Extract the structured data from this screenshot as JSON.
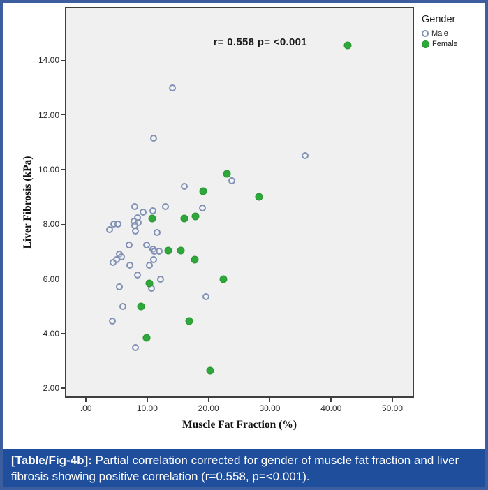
{
  "figure": {
    "legend": {
      "title": "Gender",
      "items": [
        {
          "label": "Male",
          "marker": "open-circle"
        },
        {
          "label": "Female",
          "marker": "filled-circle"
        }
      ]
    },
    "caption": {
      "label": "[Table/Fig-4b]:",
      "text": " Partial correlation corrected for gender of muscle fat fraction and liver fibrosis showing positive correlation (r=0.558, p=<0.001)."
    }
  },
  "colors": {
    "border_blue": "#3d5e9e",
    "caption_bg": "#1e4e9c",
    "plot_bg": "#f1f0f1",
    "frame": "#3f3f3f",
    "male_stroke": "#8091b4",
    "female_fill": "#2ea83b"
  },
  "chart_data": {
    "type": "scatter",
    "title": "",
    "xlabel": "Muscle Fat Fraction (%)",
    "ylabel": "Liver Fibrosis (kPa)",
    "annotation": "r= 0.558  p= <0.001",
    "xlim": [
      -3.2,
      53.3
    ],
    "ylim": [
      1.7,
      15.9
    ],
    "grid": false,
    "legend_position": "top-right-outside",
    "xticks": {
      "values": [
        0,
        10,
        20,
        30,
        40,
        50
      ],
      "labels": [
        ".00",
        "10.00",
        "20.00",
        "30.00",
        "40.00",
        "50.00"
      ]
    },
    "yticks": {
      "values": [
        2,
        4,
        6,
        8,
        10,
        12,
        14
      ],
      "labels": [
        "2.00",
        "4.00",
        "6.00",
        "8.00",
        "10.00",
        "12.00",
        "14.00"
      ]
    },
    "series": [
      {
        "name": "Male",
        "marker": "open-circle",
        "color": "#8091b4",
        "points": [
          [
            8.0,
            8.65
          ],
          [
            9.3,
            8.45
          ],
          [
            10.9,
            8.5
          ],
          [
            13.0,
            8.65
          ],
          [
            19.0,
            8.6
          ],
          [
            8.4,
            8.25
          ],
          [
            7.9,
            8.1
          ],
          [
            8.5,
            8.05
          ],
          [
            8.0,
            7.95
          ],
          [
            8.1,
            7.75
          ],
          [
            4.5,
            8.0
          ],
          [
            5.2,
            8.0
          ],
          [
            3.9,
            7.8
          ],
          [
            11.6,
            7.7
          ],
          [
            7.0,
            7.25
          ],
          [
            9.9,
            7.25
          ],
          [
            10.9,
            7.1
          ],
          [
            11.1,
            7.0
          ],
          [
            11.9,
            7.0
          ],
          [
            5.5,
            6.9
          ],
          [
            5.8,
            6.8
          ],
          [
            5.0,
            6.7
          ],
          [
            4.4,
            6.6
          ],
          [
            11.0,
            6.7
          ],
          [
            10.4,
            6.5
          ],
          [
            7.2,
            6.5
          ],
          [
            8.4,
            6.15
          ],
          [
            12.2,
            6.0
          ],
          [
            5.5,
            5.7
          ],
          [
            10.7,
            5.65
          ],
          [
            6.0,
            5.0
          ],
          [
            4.3,
            4.45
          ],
          [
            19.6,
            5.35
          ],
          [
            8.1,
            3.5
          ],
          [
            14.1,
            13.0
          ],
          [
            11.0,
            11.15
          ],
          [
            35.8,
            10.5
          ],
          [
            16.0,
            9.4
          ],
          [
            23.8,
            9.6
          ]
        ]
      },
      {
        "name": "Female",
        "marker": "filled-circle",
        "color": "#2ea83b",
        "points": [
          [
            10.8,
            8.2
          ],
          [
            16.1,
            8.2
          ],
          [
            17.9,
            8.3
          ],
          [
            13.4,
            7.05
          ],
          [
            15.5,
            7.05
          ],
          [
            17.8,
            6.7
          ],
          [
            10.4,
            5.85
          ],
          [
            22.4,
            6.0
          ],
          [
            9.0,
            5.0
          ],
          [
            16.9,
            4.45
          ],
          [
            9.9,
            3.85
          ],
          [
            20.3,
            2.65
          ],
          [
            19.1,
            9.2
          ],
          [
            23.0,
            9.85
          ],
          [
            28.2,
            9.0
          ],
          [
            42.7,
            14.55
          ]
        ]
      }
    ]
  }
}
